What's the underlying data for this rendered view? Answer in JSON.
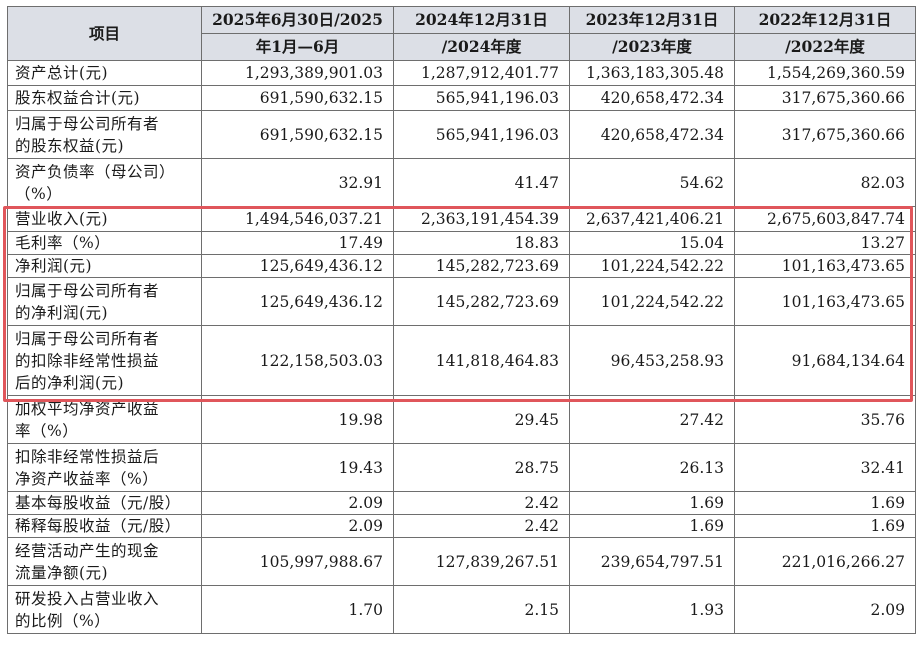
{
  "header": {
    "col0": "项目",
    "col1_line1": "2025年6月30日/2025",
    "col1_line2": "年1月—6月",
    "col2_line1": "2024年12月31日",
    "col2_line2": "/2024年度",
    "col3_line1": "2023年12月31日",
    "col3_line2": "/2023年度",
    "col4_line1": "2022年12月31日",
    "col4_line2": "/2022年度"
  },
  "rows": [
    {
      "label": "资产总计(元)",
      "v1": "1,293,389,901.03",
      "v2": "1,287,912,401.77",
      "v3": "1,363,183,305.48",
      "v4": "1,554,269,360.59"
    },
    {
      "label": "股东权益合计(元)",
      "v1": "691,590,632.15",
      "v2": "565,941,196.03",
      "v3": "420,658,472.34",
      "v4": "317,675,360.66"
    },
    {
      "label": "归属于母公司所有者\n的股东权益(元)",
      "v1": "691,590,632.15",
      "v2": "565,941,196.03",
      "v3": "420,658,472.34",
      "v4": "317,675,360.66"
    },
    {
      "label": "资产负债率（母公司）\n（%）",
      "v1": "32.91",
      "v2": "41.47",
      "v3": "54.62",
      "v4": "82.03"
    },
    {
      "label": "营业收入(元)",
      "v1": "1,494,546,037.21",
      "v2": "2,363,191,454.39",
      "v3": "2,637,421,406.21",
      "v4": "2,675,603,847.74"
    },
    {
      "label": "毛利率（%）",
      "v1": "17.49",
      "v2": "18.83",
      "v3": "15.04",
      "v4": "13.27"
    },
    {
      "label": "净利润(元)",
      "v1": "125,649,436.12",
      "v2": "145,282,723.69",
      "v3": "101,224,542.22",
      "v4": "101,163,473.65"
    },
    {
      "label": "归属于母公司所有者\n的净利润(元)",
      "v1": "125,649,436.12",
      "v2": "145,282,723.69",
      "v3": "101,224,542.22",
      "v4": "101,163,473.65"
    },
    {
      "label": "归属于母公司所有者\n的扣除非经常性损益\n后的净利润(元)",
      "v1": "122,158,503.03",
      "v2": "141,818,464.83",
      "v3": "96,453,258.93",
      "v4": "91,684,134.64"
    },
    {
      "label": "加权平均净资产收益\n率（%）",
      "v1": "19.98",
      "v2": "29.45",
      "v3": "27.42",
      "v4": "35.76"
    },
    {
      "label": "扣除非经常性损益后\n净资产收益率（%）",
      "v1": "19.43",
      "v2": "28.75",
      "v3": "26.13",
      "v4": "32.41"
    },
    {
      "label": "基本每股收益（元/股）",
      "v1": "2.09",
      "v2": "2.42",
      "v3": "1.69",
      "v4": "1.69"
    },
    {
      "label": "稀释每股收益（元/股）",
      "v1": "2.09",
      "v2": "2.42",
      "v3": "1.69",
      "v4": "1.69"
    },
    {
      "label": "经营活动产生的现金\n流量净额(元)",
      "v1": "105,997,988.67",
      "v2": "127,839,267.51",
      "v3": "239,654,797.51",
      "v4": "221,016,266.27"
    },
    {
      "label": "研发投入占营业收入\n的比例（%）",
      "v1": "1.70",
      "v2": "2.15",
      "v3": "1.93",
      "v4": "2.09"
    }
  ],
  "colors": {
    "header_bg": "#dcdfe6",
    "highlight": "#e0565b",
    "border": "#6e6e6e"
  }
}
